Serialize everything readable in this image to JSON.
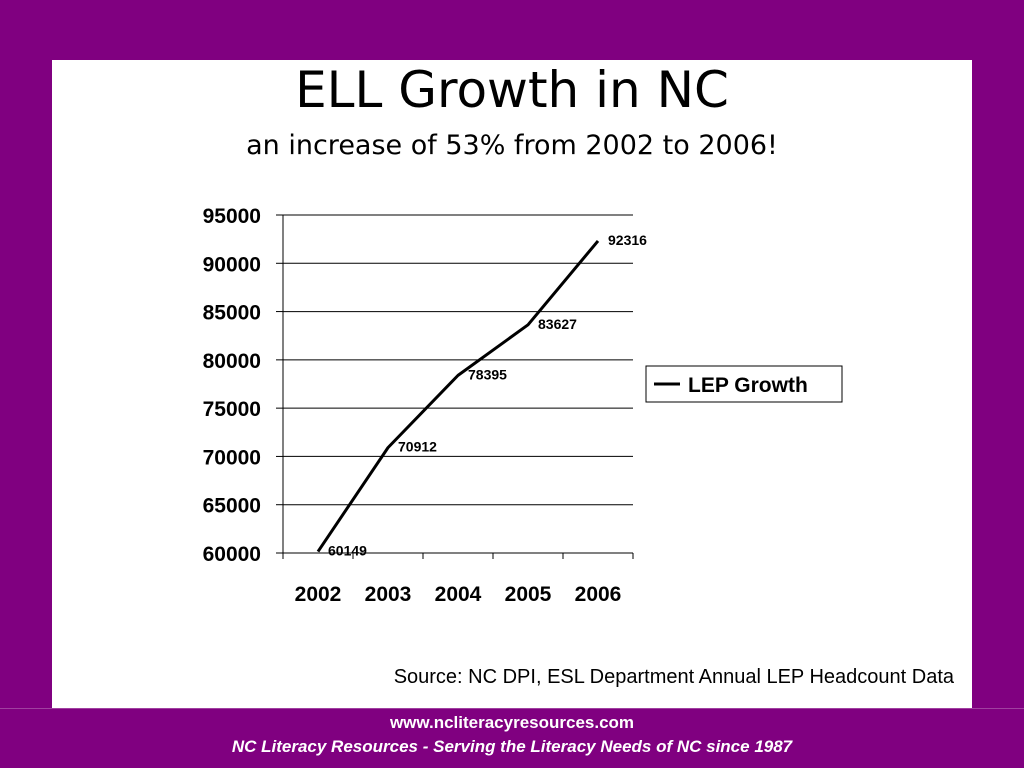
{
  "slide": {
    "title": "ELL Growth in NC",
    "subtitle": "an increase of 53% from 2002 to 2006!",
    "source": "Source: NC DPI, ESL Department Annual LEP Headcount Data",
    "footer_url": "www.ncliteracyresources.com",
    "footer_tagline": "NC Literacy Resources - Serving the Literacy Needs of NC since 1987"
  },
  "colors": {
    "background": "#800080",
    "panel": "#ffffff",
    "line": "#000000"
  },
  "chart_data": {
    "type": "line",
    "title": "",
    "xlabel": "",
    "ylabel": "",
    "categories": [
      "2002",
      "2003",
      "2004",
      "2005",
      "2006"
    ],
    "series": [
      {
        "name": "LEP Growth",
        "values": [
          60149,
          70912,
          78395,
          83627,
          92316
        ]
      }
    ],
    "data_labels": [
      "60149",
      "70912",
      "78395",
      "83627",
      "92316"
    ],
    "ylim": [
      60000,
      95000
    ],
    "yticks": [
      60000,
      65000,
      70000,
      75000,
      80000,
      85000,
      90000,
      95000
    ],
    "ytick_labels": [
      "60000",
      "65000",
      "70000",
      "75000",
      "80000",
      "85000",
      "90000",
      "95000"
    ],
    "grid": true,
    "legend": "right"
  }
}
